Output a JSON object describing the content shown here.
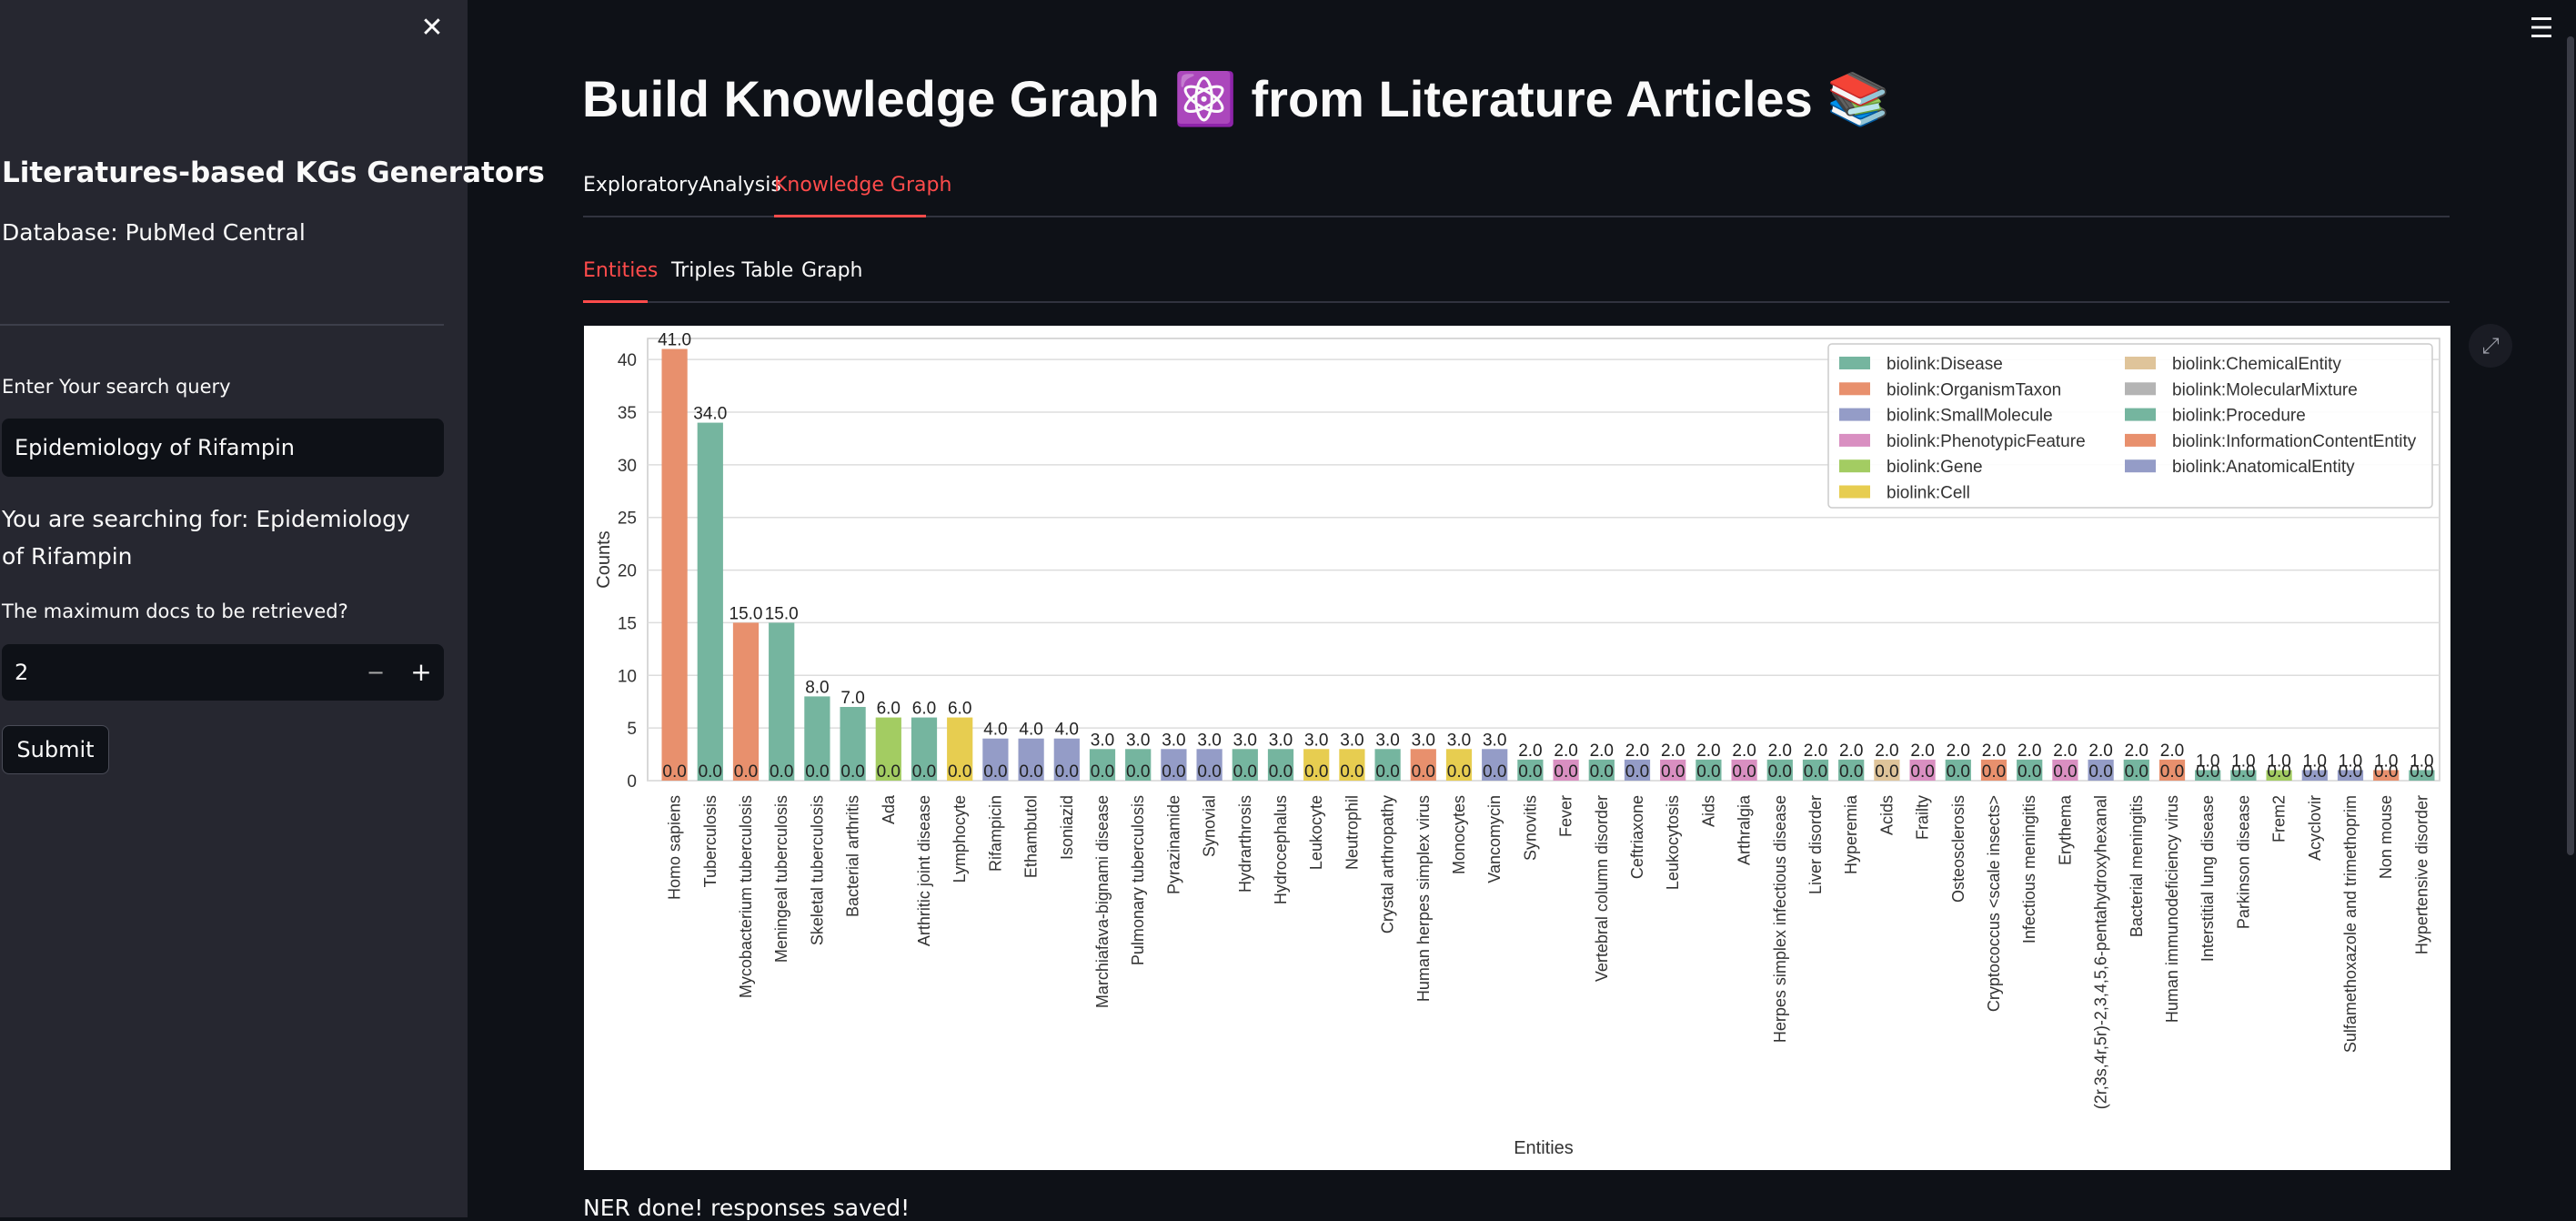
{
  "sidebar": {
    "close_icon": "close-icon",
    "title": "Literatures-based KGs Generators",
    "database": "Database: PubMed Central",
    "query_label": "Enter Your search query",
    "query_value": "Epidemiology of Rifampin",
    "searching_text": "You are searching for: Epidemiology of Rifampin",
    "max_docs_label": "The maximum docs to be retrieved?",
    "max_docs_value": "2",
    "minus_label": "−",
    "plus_label": "+",
    "submit_label": "Submit"
  },
  "header": {
    "menu_icon": "hamburger-menu-icon",
    "title": "Build Knowledge Graph ⚛️ from Literature Articles 📚"
  },
  "tabs": [
    {
      "label": "ExploratoryAnalysis",
      "active": false
    },
    {
      "label": "Knowledge Graph",
      "active": true
    }
  ],
  "subtabs": [
    {
      "label": "Entities",
      "active": true
    },
    {
      "label": "Triples Table",
      "active": false
    },
    {
      "label": "Graph",
      "active": false
    }
  ],
  "status_message": "NER done! responses saved!",
  "accent_color": "#ff4b4b",
  "chart_data": {
    "type": "bar",
    "title": "",
    "xlabel": "Entities",
    "ylabel": "Counts",
    "ylim": [
      0,
      42
    ],
    "yticks": [
      0,
      5,
      10,
      15,
      20,
      25,
      30,
      35,
      40
    ],
    "grid": true,
    "legend_position": "top-right",
    "zero_label": "0.0",
    "legend": [
      {
        "name": "biolink:Disease",
        "color": "#75b59f"
      },
      {
        "name": "biolink:OrganismTaxon",
        "color": "#e8906d"
      },
      {
        "name": "biolink:SmallMolecule",
        "color": "#949cc7"
      },
      {
        "name": "biolink:PhenotypicFeature",
        "color": "#d98fc1"
      },
      {
        "name": "biolink:Gene",
        "color": "#a3cc62"
      },
      {
        "name": "biolink:Cell",
        "color": "#e7cd50"
      },
      {
        "name": "biolink:ChemicalEntity",
        "color": "#dfc49a"
      },
      {
        "name": "biolink:MolecularMixture",
        "color": "#b4b4b4"
      },
      {
        "name": "biolink:Procedure",
        "color": "#75b59f"
      },
      {
        "name": "biolink:InformationContentEntity",
        "color": "#e8906d"
      },
      {
        "name": "biolink:AnatomicalEntity",
        "color": "#949cc7"
      }
    ],
    "bars": [
      {
        "label": "Homo sapiens",
        "value": 41.0,
        "color": "#e8906d"
      },
      {
        "label": "Tuberculosis",
        "value": 34.0,
        "color": "#75b59f"
      },
      {
        "label": "Mycobacterium tuberculosis",
        "value": 15.0,
        "color": "#e8906d"
      },
      {
        "label": "Meningeal tuberculosis",
        "value": 15.0,
        "color": "#75b59f"
      },
      {
        "label": "Skeletal tuberculosis",
        "value": 8.0,
        "color": "#75b59f"
      },
      {
        "label": "Bacterial arthritis",
        "value": 7.0,
        "color": "#75b59f"
      },
      {
        "label": "Ada",
        "value": 6.0,
        "color": "#a3cc62"
      },
      {
        "label": "Arthritic joint disease",
        "value": 6.0,
        "color": "#75b59f"
      },
      {
        "label": "Lymphocyte",
        "value": 6.0,
        "color": "#e7cd50"
      },
      {
        "label": "Rifampicin",
        "value": 4.0,
        "color": "#949cc7"
      },
      {
        "label": "Ethambutol",
        "value": 4.0,
        "color": "#949cc7"
      },
      {
        "label": "Isoniazid",
        "value": 4.0,
        "color": "#949cc7"
      },
      {
        "label": "Marchiafava-bignami disease",
        "value": 3.0,
        "color": "#75b59f"
      },
      {
        "label": "Pulmonary tuberculosis",
        "value": 3.0,
        "color": "#75b59f"
      },
      {
        "label": "Pyrazinamide",
        "value": 3.0,
        "color": "#949cc7"
      },
      {
        "label": "Synovial",
        "value": 3.0,
        "color": "#949cc7"
      },
      {
        "label": "Hydrarthrosis",
        "value": 3.0,
        "color": "#75b59f"
      },
      {
        "label": "Hydrocephalus",
        "value": 3.0,
        "color": "#75b59f"
      },
      {
        "label": "Leukocyte",
        "value": 3.0,
        "color": "#e7cd50"
      },
      {
        "label": "Neutrophil",
        "value": 3.0,
        "color": "#e7cd50"
      },
      {
        "label": "Crystal arthropathy",
        "value": 3.0,
        "color": "#75b59f"
      },
      {
        "label": "Human herpes simplex virus",
        "value": 3.0,
        "color": "#e8906d"
      },
      {
        "label": "Monocytes",
        "value": 3.0,
        "color": "#e7cd50"
      },
      {
        "label": "Vancomycin",
        "value": 3.0,
        "color": "#949cc7"
      },
      {
        "label": "Synovitis",
        "value": 2.0,
        "color": "#75b59f"
      },
      {
        "label": "Fever",
        "value": 2.0,
        "color": "#d98fc1"
      },
      {
        "label": "Vertebral column disorder",
        "value": 2.0,
        "color": "#75b59f"
      },
      {
        "label": "Ceftriaxone",
        "value": 2.0,
        "color": "#949cc7"
      },
      {
        "label": "Leukocytosis",
        "value": 2.0,
        "color": "#d98fc1"
      },
      {
        "label": "Aids",
        "value": 2.0,
        "color": "#75b59f"
      },
      {
        "label": "Arthralgia",
        "value": 2.0,
        "color": "#d98fc1"
      },
      {
        "label": "Herpes simplex infectious disease",
        "value": 2.0,
        "color": "#75b59f"
      },
      {
        "label": "Liver disorder",
        "value": 2.0,
        "color": "#75b59f"
      },
      {
        "label": "Hyperemia",
        "value": 2.0,
        "color": "#75b59f"
      },
      {
        "label": "Acids",
        "value": 2.0,
        "color": "#dfc49a"
      },
      {
        "label": "Frailty",
        "value": 2.0,
        "color": "#d98fc1"
      },
      {
        "label": "Osteosclerosis",
        "value": 2.0,
        "color": "#75b59f"
      },
      {
        "label": "Cryptococcus <scale insects>",
        "value": 2.0,
        "color": "#e8906d"
      },
      {
        "label": "Infectious meningitis",
        "value": 2.0,
        "color": "#75b59f"
      },
      {
        "label": "Erythema",
        "value": 2.0,
        "color": "#d98fc1"
      },
      {
        "label": "(2r,3s,4r,5r)-2,3,4,5,6-pentahydroxyhexanal",
        "value": 2.0,
        "color": "#949cc7"
      },
      {
        "label": "Bacterial meningitis",
        "value": 2.0,
        "color": "#75b59f"
      },
      {
        "label": "Human immunodeficiency virus",
        "value": 2.0,
        "color": "#e8906d"
      },
      {
        "label": "Interstitial lung disease",
        "value": 1.0,
        "color": "#75b59f"
      },
      {
        "label": "Parkinson disease",
        "value": 1.0,
        "color": "#75b59f"
      },
      {
        "label": "Frem2",
        "value": 1.0,
        "color": "#a3cc62"
      },
      {
        "label": "Acyclovir",
        "value": 1.0,
        "color": "#949cc7"
      },
      {
        "label": "Sulfamethoxazole and trimethoprim",
        "value": 1.0,
        "color": "#949cc7"
      },
      {
        "label": "Non mouse",
        "value": 1.0,
        "color": "#e8906d"
      },
      {
        "label": "Hypertensive disorder",
        "value": 1.0,
        "color": "#75b59f"
      }
    ]
  }
}
